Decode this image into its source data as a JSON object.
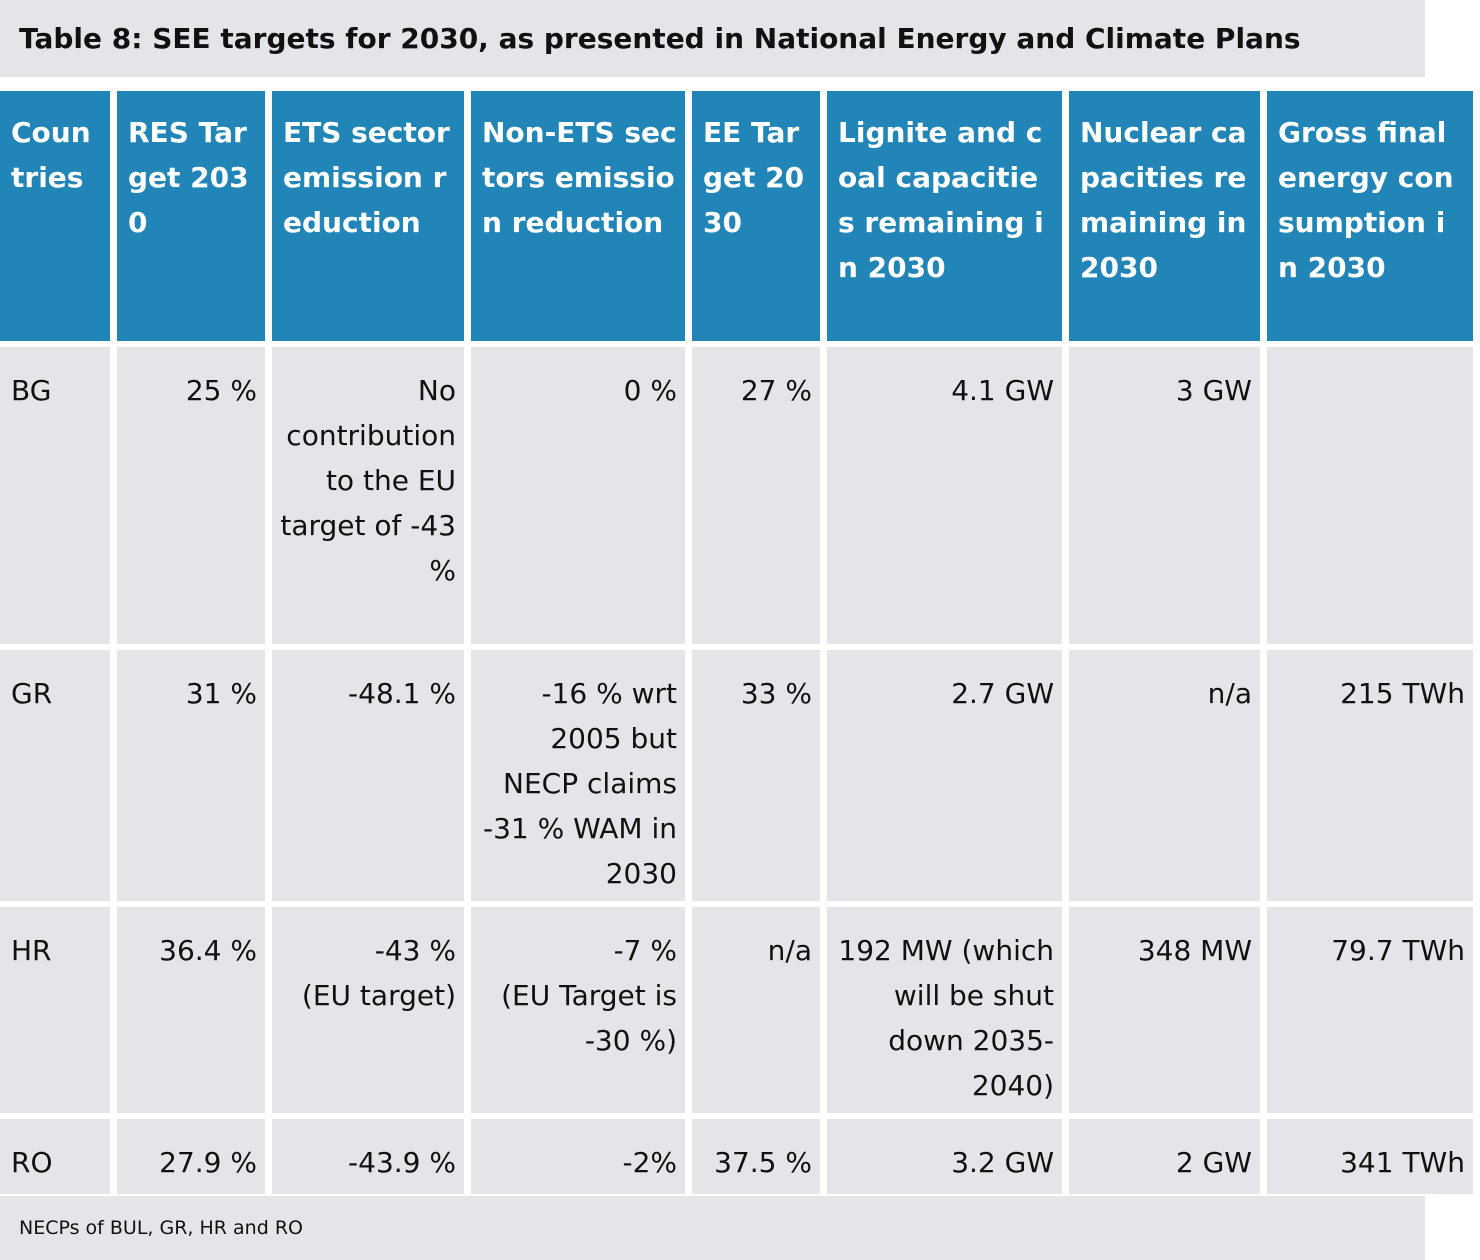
{
  "title": "Table 8: SEE targets for 2030, as presented in National Energy and Climate Plans",
  "columns": [
    "Coun tries",
    "RES Target 2030",
    "ETS sector emission reduction",
    "Non-ETS sectors emission reduction",
    "EE Target 2030",
    "Lignite and coal capacities remaining in 2030",
    "Nuclear capacities remaining in 2030",
    "Gross final energy consumption in 2030"
  ],
  "rows": [
    [
      "BG",
      "25 %",
      "No contribution to the EU target of -43 %",
      "0 %",
      "27 %",
      "4.1 GW",
      "3 GW",
      ""
    ],
    [
      "GR",
      "31 %",
      "-48.1 %",
      "-16 % wrt 2005 but NECP claims -31 % WAM in 2030",
      "33 %",
      "2.7 GW",
      "n/a",
      "215 TWh"
    ],
    [
      "HR",
      "36.4 %",
      "-43 %\n(EU target)",
      "-7 %\n(EU Target is -30 %)",
      "n/a",
      "192 MW (which will be shut down 2035-2040)",
      "348 MW",
      "79.7 TWh"
    ],
    [
      "RO",
      "27.9 %",
      "-43.9 %",
      "-2%",
      "37.5 %",
      "3.2 GW",
      "2 GW",
      "341 TWh"
    ]
  ],
  "source": "NECPs of BUL, GR, HR and RO"
}
